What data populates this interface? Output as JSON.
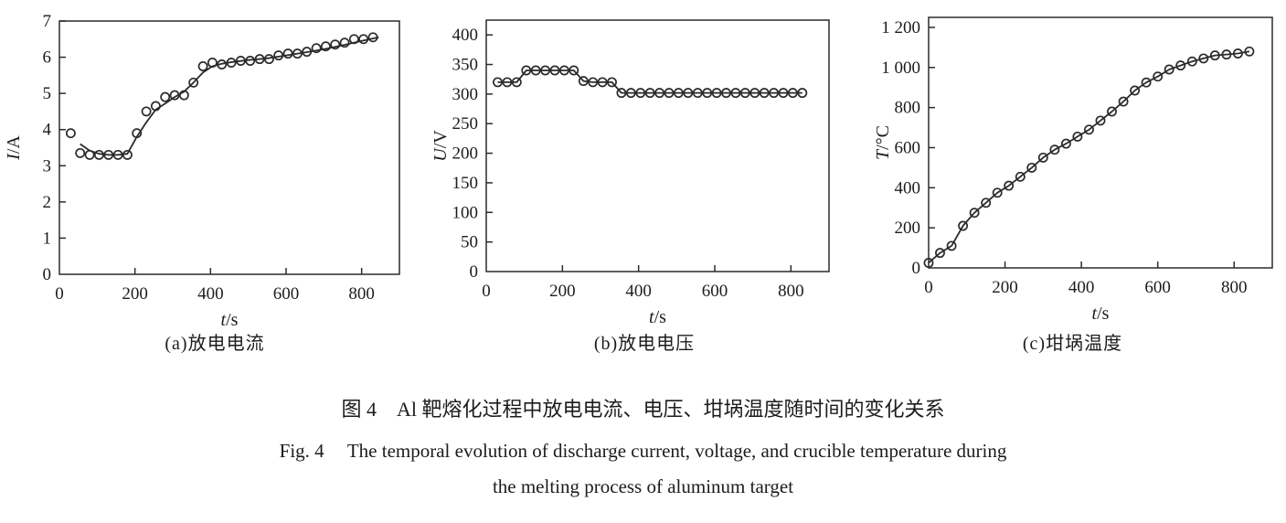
{
  "figure": {
    "caption_zh_label": "图 4",
    "caption_zh_text": "Al 靶熔化过程中放电电流、电压、坩埚温度随时间的变化关系",
    "caption_en_label": "Fig. 4",
    "caption_en_line1": "The temporal evolution of discharge current, voltage, and crucible temperature during",
    "caption_en_line2": "the melting process of aluminum target"
  },
  "colors": {
    "ink": "#2b2b2b",
    "background": "#ffffff"
  },
  "chart_data": [
    {
      "type": "scatter",
      "panel_label": "(a)放电电流",
      "xlabel": {
        "var": "t",
        "unit": "/s"
      },
      "ylabel": {
        "var": "I",
        "unit": "/A"
      },
      "xlim": [
        0,
        900
      ],
      "ylim": [
        0,
        7
      ],
      "xticks": {
        "values": [
          0,
          200,
          400,
          600,
          800
        ],
        "labels": [
          "0",
          "200",
          "400",
          "600",
          "800"
        ]
      },
      "yticks": {
        "values": [
          0,
          1,
          2,
          3,
          4,
          5,
          6,
          7
        ],
        "labels": [
          "0",
          "1",
          "2",
          "3",
          "4",
          "5",
          "6",
          "7"
        ]
      },
      "grid": false,
      "legend": null,
      "series": [
        {
          "name": "fit-line",
          "type": "line",
          "x": [
            55,
            80,
            105,
            130,
            155,
            180,
            205,
            230,
            255,
            280,
            305,
            330,
            355,
            380,
            405,
            430,
            460,
            500,
            550,
            600,
            650,
            700,
            750,
            800,
            845
          ],
          "y": [
            3.6,
            3.42,
            3.33,
            3.3,
            3.3,
            3.33,
            3.8,
            4.2,
            4.55,
            4.72,
            4.9,
            5.05,
            5.3,
            5.58,
            5.75,
            5.82,
            5.87,
            5.92,
            5.97,
            6.05,
            6.13,
            6.22,
            6.33,
            6.45,
            6.55
          ]
        },
        {
          "name": "measured-current",
          "type": "scatter",
          "connect": false,
          "x": [
            30,
            55,
            80,
            105,
            130,
            155,
            180,
            205,
            230,
            255,
            280,
            305,
            330,
            355,
            380,
            405,
            430,
            455,
            480,
            505,
            530,
            555,
            580,
            605,
            630,
            655,
            680,
            705,
            730,
            755,
            780,
            805,
            830
          ],
          "y": [
            3.9,
            3.35,
            3.3,
            3.3,
            3.3,
            3.3,
            3.3,
            3.9,
            4.5,
            4.65,
            4.9,
            4.95,
            4.95,
            5.3,
            5.75,
            5.85,
            5.8,
            5.85,
            5.9,
            5.9,
            5.95,
            5.95,
            6.05,
            6.1,
            6.1,
            6.15,
            6.25,
            6.3,
            6.35,
            6.4,
            6.5,
            6.5,
            6.55
          ]
        }
      ]
    },
    {
      "type": "scatter",
      "panel_label": "(b)放电电压",
      "xlabel": {
        "var": "t",
        "unit": "/s"
      },
      "ylabel": {
        "var": "U",
        "unit": "/V"
      },
      "xlim": [
        0,
        900
      ],
      "ylim": [
        0,
        425
      ],
      "xticks": {
        "values": [
          0,
          200,
          400,
          600,
          800
        ],
        "labels": [
          "0",
          "200",
          "400",
          "600",
          "800"
        ]
      },
      "yticks": {
        "values": [
          0,
          50,
          100,
          150,
          200,
          250,
          300,
          350,
          400
        ],
        "labels": [
          "0",
          "50",
          "100",
          "150",
          "200",
          "250",
          "300",
          "350",
          "400"
        ]
      },
      "grid": false,
      "legend": null,
      "series": [
        {
          "name": "measured-voltage",
          "type": "scatter",
          "connect": true,
          "x": [
            30,
            55,
            80,
            105,
            130,
            155,
            180,
            205,
            230,
            255,
            280,
            305,
            330,
            355,
            380,
            405,
            430,
            455,
            480,
            505,
            530,
            555,
            580,
            605,
            630,
            655,
            680,
            705,
            730,
            755,
            780,
            805,
            830
          ],
          "y": [
            320,
            320,
            320,
            340,
            340,
            340,
            340,
            340,
            340,
            322,
            320,
            320,
            320,
            302,
            302,
            302,
            302,
            302,
            302,
            302,
            302,
            302,
            302,
            302,
            302,
            302,
            302,
            302,
            302,
            302,
            302,
            302,
            302
          ]
        }
      ]
    },
    {
      "type": "scatter",
      "panel_label": "(c)坩埚温度",
      "xlabel": {
        "var": "t",
        "unit": "/s"
      },
      "ylabel": {
        "var": "T",
        "unit": "/°C"
      },
      "xlim": [
        0,
        900
      ],
      "ylim": [
        0,
        1250
      ],
      "xticks": {
        "values": [
          0,
          200,
          400,
          600,
          800
        ],
        "labels": [
          "0",
          "200",
          "400",
          "600",
          "800"
        ]
      },
      "yticks": {
        "values": [
          0,
          200,
          400,
          600,
          800,
          1000,
          1200
        ],
        "labels": [
          "0",
          "200",
          "400",
          "600",
          "800",
          "1 000",
          "1 200"
        ]
      },
      "grid": false,
      "legend": null,
      "series": [
        {
          "name": "crucible-temperature",
          "type": "scatter",
          "connect": true,
          "x": [
            0,
            30,
            60,
            90,
            120,
            150,
            180,
            210,
            240,
            270,
            300,
            330,
            360,
            390,
            420,
            450,
            480,
            510,
            540,
            570,
            600,
            630,
            660,
            690,
            720,
            750,
            780,
            810,
            840
          ],
          "y": [
            25,
            75,
            110,
            210,
            275,
            325,
            375,
            410,
            455,
            500,
            550,
            590,
            620,
            655,
            690,
            735,
            780,
            830,
            885,
            925,
            955,
            990,
            1010,
            1030,
            1045,
            1060,
            1065,
            1070,
            1080
          ]
        }
      ]
    }
  ]
}
